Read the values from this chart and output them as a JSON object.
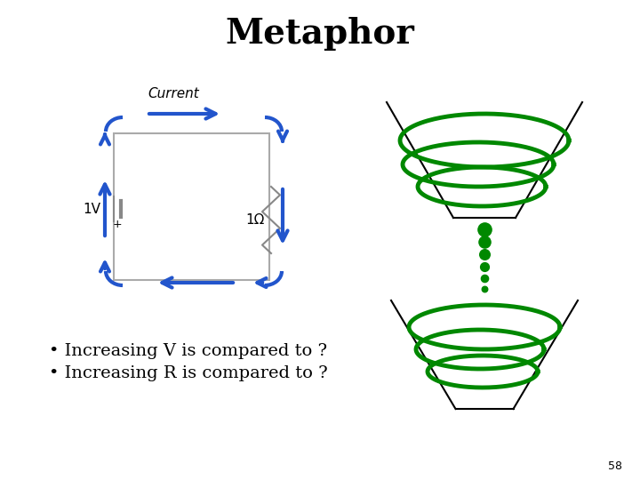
{
  "title": "Metaphor",
  "title_fontsize": 28,
  "title_fontweight": "bold",
  "bg_color": "#ffffff",
  "current_label": "Current",
  "bullet1": "Increasing V is compared to ?",
  "bullet2": "Increasing R is compared to ?",
  "bullet_fontsize": 14,
  "page_number": "58",
  "blue_arrow_color": "#2255cc",
  "green_color": "#008800",
  "dot_color": "#008800",
  "circuit_box_color": "#cccccc",
  "funnel_line_color": "#000000"
}
